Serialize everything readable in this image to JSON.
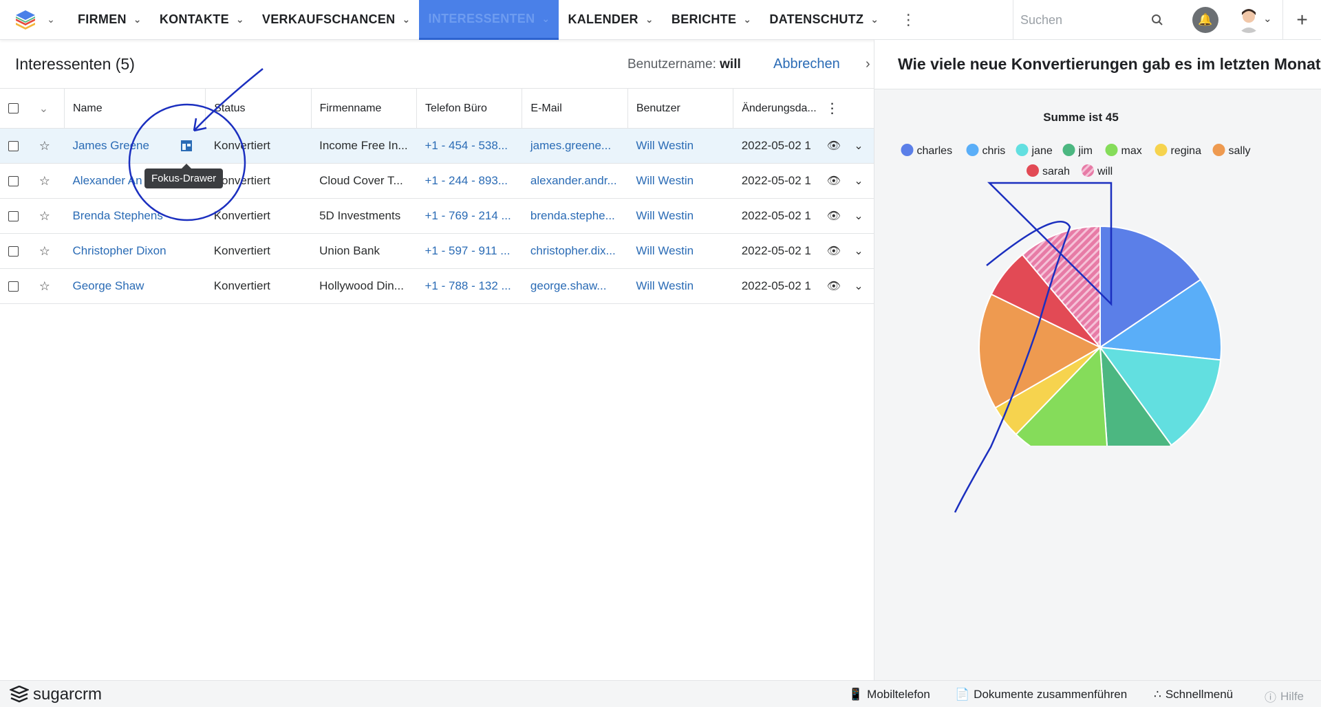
{
  "nav": {
    "items": [
      {
        "label": "FIRMEN"
      },
      {
        "label": "KONTAKTE"
      },
      {
        "label": "VERKAUFSCHANCEN"
      },
      {
        "label": "INTERESSENTEN"
      },
      {
        "label": "KALENDER"
      },
      {
        "label": "BERICHTE"
      },
      {
        "label": "DATENSCHUTZ"
      }
    ],
    "active": "INTERESSENTEN",
    "search_placeholder": "Suchen"
  },
  "list": {
    "title": "Interessenten (5)",
    "user_label": "Benutzername:",
    "user_value": "will",
    "cancel": "Abbrechen",
    "columns": [
      "Name",
      "Status",
      "Firmenname",
      "Telefon Büro",
      "E-Mail",
      "Benutzer",
      "Änderungsda..."
    ],
    "rows": [
      {
        "name": "James Greene",
        "status": "Konvertiert",
        "company": "Income Free In...",
        "phone": "+1 - 454 - 538...",
        "email": "james.greene...",
        "user": "Will Westin",
        "date": "2022-05-02 1"
      },
      {
        "name": "Alexander An",
        "status": "Konvertiert",
        "company": "Cloud Cover T...",
        "phone": "+1 - 244 - 893...",
        "email": "alexander.andr...",
        "user": "Will Westin",
        "date": "2022-05-02 1"
      },
      {
        "name": "Brenda Stephens",
        "status": "Konvertiert",
        "company": "5D Investments",
        "phone": "+1 - 769 - 214 ...",
        "email": "brenda.stephe...",
        "user": "Will Westin",
        "date": "2022-05-02 1"
      },
      {
        "name": "Christopher Dixon",
        "status": "Konvertiert",
        "company": "Union Bank",
        "phone": "+1 - 597 - 911 ...",
        "email": "christopher.dix...",
        "user": "Will Westin",
        "date": "2022-05-02 1"
      },
      {
        "name": "George Shaw",
        "status": "Konvertiert",
        "company": "Hollywood Din...",
        "phone": "+1 - 788 - 132 ...",
        "email": "george.shaw...",
        "user": "Will Westin",
        "date": "2022-05-02 1"
      }
    ],
    "tooltip": "Fokus-Drawer"
  },
  "dashlet": {
    "title": "Wie viele neue Konvertierungen gab es im letzten Monat"
  },
  "chart_data": {
    "type": "pie",
    "title": "Summe ist 45",
    "legend_position": "top",
    "categories": [
      "charles",
      "chris",
      "jane",
      "jim",
      "max",
      "regina",
      "sally",
      "sarah",
      "will"
    ],
    "values": [
      7,
      5,
      6,
      4,
      6,
      2,
      7,
      3,
      5
    ],
    "colors": [
      "#5b7fe8",
      "#5aaef8",
      "#62dfe0",
      "#4cb781",
      "#85dc5a",
      "#f6d34e",
      "#ee9a50",
      "#e24a55",
      "#e77ba6"
    ]
  },
  "footer": {
    "brand": "sugarcrm",
    "mobile": "Mobiltelefon",
    "merge": "Dokumente zusammenführen",
    "quick": "Schnellmenü",
    "help": "Hilfe"
  }
}
